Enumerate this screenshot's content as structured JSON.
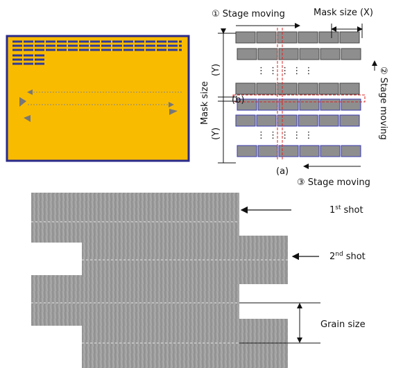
{
  "stage_diagram": {
    "step1": "① Stage moving",
    "mask_x": "Mask size (X)",
    "mask_y": "Mask size",
    "y_upper": "(Y)",
    "y_lower": "(Y)",
    "step2": "② Stage moving",
    "label_b": "(b)",
    "label_a": "(a)",
    "step3": "③ Stage moving"
  },
  "shots": [
    {
      "number": "1",
      "suffix": "st",
      "word": "shot"
    },
    {
      "number": "2",
      "suffix": "nd",
      "word": "shot"
    }
  ],
  "grain_size": "Grain size"
}
